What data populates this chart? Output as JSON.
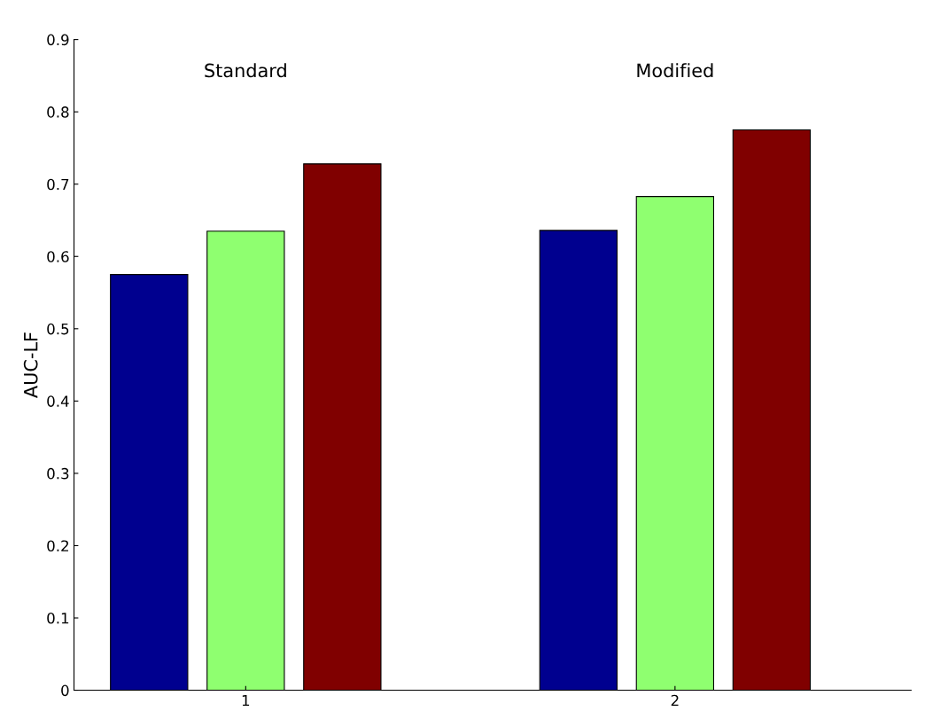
{
  "chart_data": {
    "type": "bar",
    "ylabel": "AUC-LF",
    "categories": [
      "1",
      "2"
    ],
    "series": [
      {
        "color": "#00008f",
        "values": [
          0.575,
          0.636
        ]
      },
      {
        "color": "#8fff70",
        "values": [
          0.635,
          0.683
        ]
      },
      {
        "color": "#800000",
        "values": [
          0.728,
          0.775
        ]
      }
    ],
    "ylim": [
      0,
      0.9
    ],
    "yticks": [
      0,
      0.1,
      0.2,
      0.3,
      0.4,
      0.5,
      0.6,
      0.7,
      0.8,
      0.9
    ],
    "grid": false,
    "legend": false,
    "annotations": [
      "Standard",
      "Modified"
    ]
  }
}
